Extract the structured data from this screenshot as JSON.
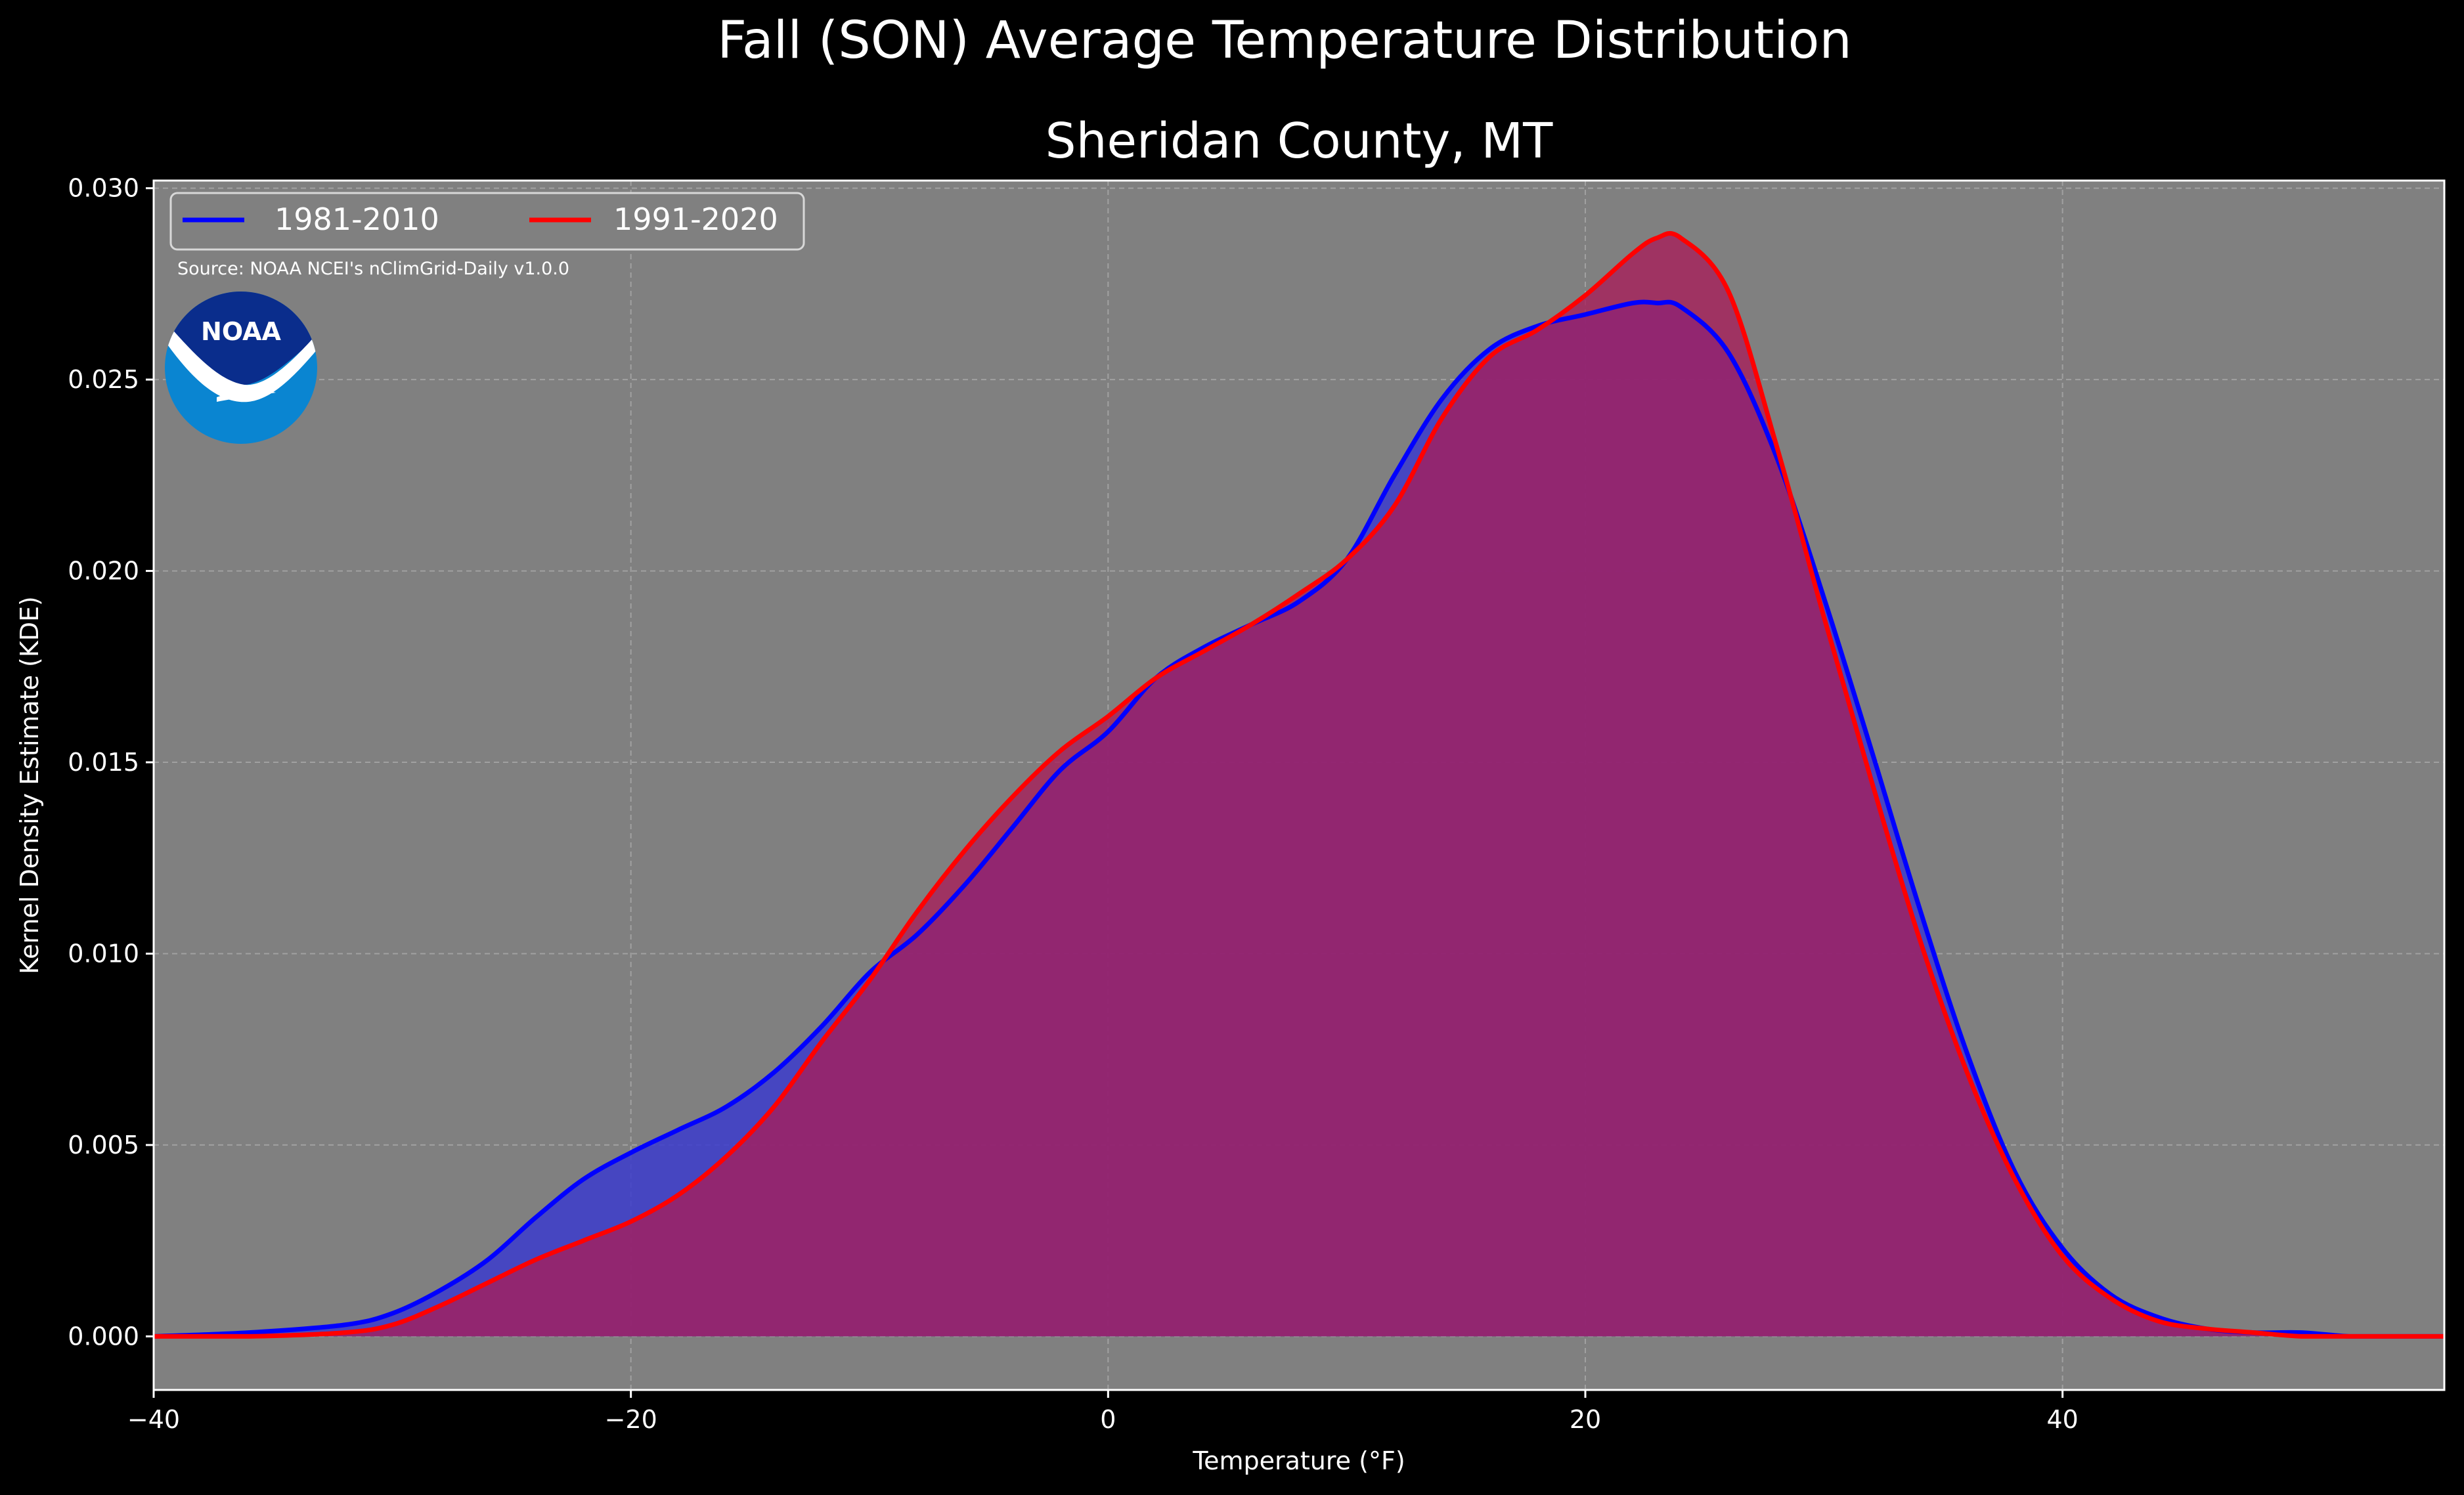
{
  "figure": {
    "suptitle": "Fall (SON) Average Temperature Distribution",
    "source_note": "Source: NOAA NCEI's nClimGrid-Daily v1.0.0",
    "logo": {
      "icon": "noaa-logo",
      "text": "NOAA",
      "colors": {
        "dark": "#0a2d8c",
        "light": "#0a85d1",
        "bird": "#ffffff"
      }
    }
  },
  "colors": {
    "figure_bg": "#000000",
    "axes_bg": "#808080",
    "grid": "#b0b0b0",
    "text": "#ffffff"
  },
  "chart_data": {
    "type": "area",
    "title": "Sheridan County, MT",
    "xlabel": "Temperature (°F)",
    "ylabel": "Kernel Density Estimate (KDE)",
    "xlim": [
      -40,
      56
    ],
    "ylim": [
      -0.0014,
      0.0302
    ],
    "xticks": [
      -40,
      -20,
      0,
      20,
      40
    ],
    "xtick_labels": [
      "−40",
      "−20",
      "0",
      "20",
      "40"
    ],
    "yticks": [
      0,
      0.005,
      0.01,
      0.015,
      0.02,
      0.025,
      0.03
    ],
    "ytick_labels": [
      "0.000",
      "0.005",
      "0.010",
      "0.015",
      "0.020",
      "0.025",
      "0.030"
    ],
    "grid": true,
    "legend": {
      "position": "top-left",
      "ncol": 2
    },
    "series": [
      {
        "name": "1981-2010",
        "color": "#0000ff",
        "fill": "#3c3ccc",
        "x": [
          -40,
          -36,
          -32,
          -30,
          -28,
          -26,
          -24,
          -22,
          -20,
          -18,
          -16,
          -14,
          -12,
          -10,
          -8,
          -6,
          -4,
          -2,
          0,
          2,
          4,
          6,
          8,
          10,
          12,
          14,
          16,
          18,
          20,
          22,
          23,
          24,
          26,
          28,
          30,
          32,
          34,
          36,
          38,
          40,
          42,
          44,
          46,
          48,
          50,
          52,
          54,
          56
        ],
        "y": [
          0.0,
          0.0001,
          0.0003,
          0.0006,
          0.0012,
          0.002,
          0.0031,
          0.0041,
          0.0048,
          0.0054,
          0.006,
          0.0069,
          0.0081,
          0.0095,
          0.0105,
          0.0118,
          0.0133,
          0.0148,
          0.0158,
          0.0172,
          0.018,
          0.0186,
          0.0192,
          0.0203,
          0.0225,
          0.0245,
          0.0258,
          0.0264,
          0.0267,
          0.027,
          0.027,
          0.0269,
          0.0257,
          0.023,
          0.0193,
          0.0153,
          0.0112,
          0.0074,
          0.0043,
          0.0023,
          0.0011,
          0.0005,
          0.0002,
          0.0001,
          0.0001,
          0.0,
          0.0,
          0.0
        ]
      },
      {
        "name": "1991-2020",
        "color": "#ff0000",
        "fill": "#a81e5a",
        "x": [
          -40,
          -36,
          -32,
          -30,
          -28,
          -26,
          -24,
          -22,
          -20,
          -18,
          -16,
          -14,
          -12,
          -10,
          -8,
          -6,
          -4,
          -2,
          0,
          2,
          4,
          6,
          8,
          10,
          12,
          14,
          16,
          18,
          20,
          22,
          23,
          24,
          26,
          28,
          30,
          32,
          34,
          36,
          38,
          40,
          42,
          44,
          46,
          48,
          50,
          52,
          54,
          56
        ],
        "y": [
          0.0,
          0.0,
          0.0001,
          0.0003,
          0.0008,
          0.0014,
          0.002,
          0.0025,
          0.003,
          0.0037,
          0.0047,
          0.006,
          0.0077,
          0.0093,
          0.0111,
          0.0127,
          0.0141,
          0.0153,
          0.0162,
          0.0172,
          0.0179,
          0.0186,
          0.0194,
          0.0203,
          0.0217,
          0.024,
          0.0256,
          0.0263,
          0.0272,
          0.0283,
          0.0287,
          0.0287,
          0.0273,
          0.0233,
          0.0188,
          0.0145,
          0.0104,
          0.0069,
          0.0041,
          0.0021,
          0.001,
          0.0004,
          0.0002,
          0.0001,
          0.0,
          0.0,
          0.0,
          0.0
        ]
      }
    ]
  }
}
